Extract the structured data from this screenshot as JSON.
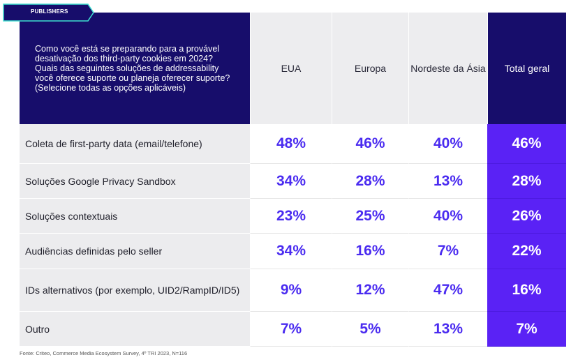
{
  "tag_label": "PUBLISHERS",
  "chart_data": {
    "type": "table",
    "title": "Como você está se preparando para a provável desativação dos third-party cookies em 2024? Quais das seguintes soluções de addressability você oferece suporte ou planeja oferecer suporte? (Selecione todas as opções aplicáveis)",
    "columns": [
      "EUA",
      "Europa",
      "Nordeste da Ásia",
      "Total geral"
    ],
    "rows": [
      {
        "label": "Coleta de first-party data (email/telefone)",
        "values": [
          "48%",
          "46%",
          "40%",
          "46%"
        ]
      },
      {
        "label": "Soluções Google Privacy Sandbox",
        "values": [
          "34%",
          "28%",
          "13%",
          "28%"
        ]
      },
      {
        "label": "Soluções contextuais",
        "values": [
          "23%",
          "25%",
          "40%",
          "26%"
        ]
      },
      {
        "label": "Audiências definidas pelo seller",
        "values": [
          "34%",
          "16%",
          "7%",
          "22%"
        ]
      },
      {
        "label": "IDs alternativos (por exemplo, UID2/RampID/ID5)",
        "values": [
          "9%",
          "12%",
          "47%",
          "16%"
        ]
      },
      {
        "label": "Outro",
        "values": [
          "7%",
          "5%",
          "13%",
          "7%"
        ]
      }
    ]
  },
  "source": "Fonte: Criteo, Commerce Media Ecosystem Survey, 4º TRI 2023, N=116",
  "colors": {
    "header_dark": "#170d6b",
    "value_text": "#4a2bf0",
    "total_column": "#5a22f5",
    "tag_fill": "#170d6b",
    "tag_outline": "#3fe0d0"
  }
}
